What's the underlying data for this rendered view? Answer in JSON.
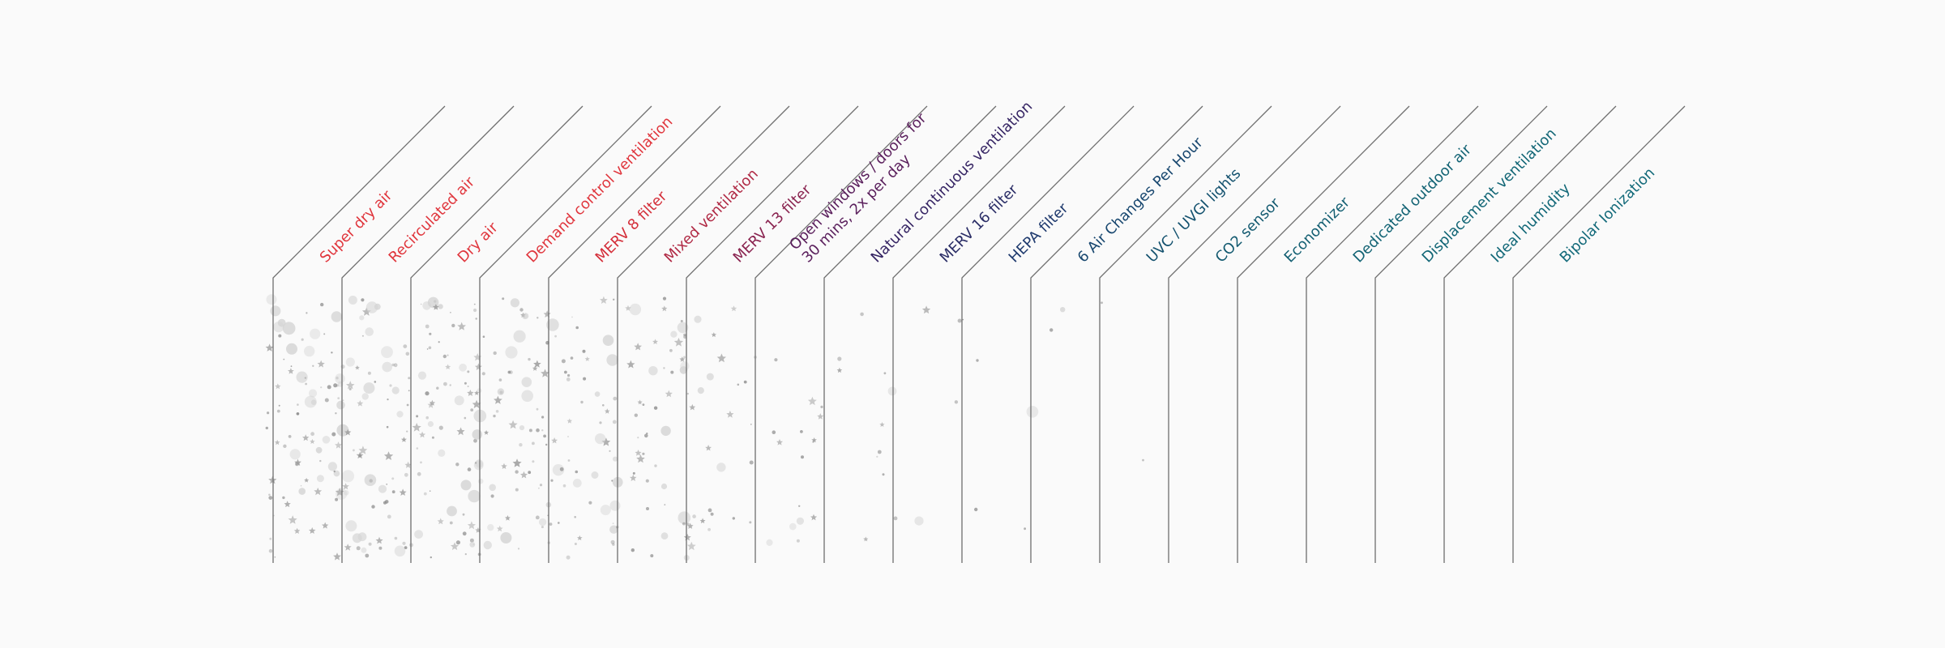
{
  "columns": [
    {
      "label": "Super dry air",
      "color": "#e0363d"
    },
    {
      "label": "Recirculated air",
      "color": "#e0363d"
    },
    {
      "label": "Dry air",
      "color": "#e0363d"
    },
    {
      "label": "Demand control ventilation",
      "color": "#e0363d"
    },
    {
      "label": "MERV 8 filter",
      "color": "#d42f3a"
    },
    {
      "label": "Mixed ventilation",
      "color": "#b02a45"
    },
    {
      "label": "MERV 13 filter",
      "color": "#8a2450"
    },
    {
      "label": [
        "Open windows / doors for",
        "30 mins, 2x per day"
      ],
      "color": "#5a1f5c"
    },
    {
      "label": "Natural continuous ventilation",
      "color": "#352463"
    },
    {
      "label": "MERV 16 filter",
      "color": "#2a2d66"
    },
    {
      "label": "HEPA filter",
      "color": "#1f3a6e"
    },
    {
      "label": "6 Air Changes Per Hour",
      "color": "#18476f"
    },
    {
      "label": "UVC / UVGI lights",
      "color": "#14526f"
    },
    {
      "label": "CO2 sensor",
      "color": "#135a70"
    },
    {
      "label": "Economizer",
      "color": "#135f72"
    },
    {
      "label": "Dedicated outdoor air",
      "color": "#126374"
    },
    {
      "label": "Displacement ventilation",
      "color": "#126676"
    },
    {
      "label": "Ideal humidity",
      "color": "#126878"
    },
    {
      "label": "Bipolar Ionization",
      "color": "#136a7a"
    }
  ],
  "particle_density": [
    1.0,
    0.95,
    0.9,
    0.85,
    0.7,
    0.55,
    0.4,
    0.2,
    0.12,
    0.08,
    0.05,
    0.04,
    0.02,
    0,
    0,
    0,
    0,
    0,
    0
  ]
}
